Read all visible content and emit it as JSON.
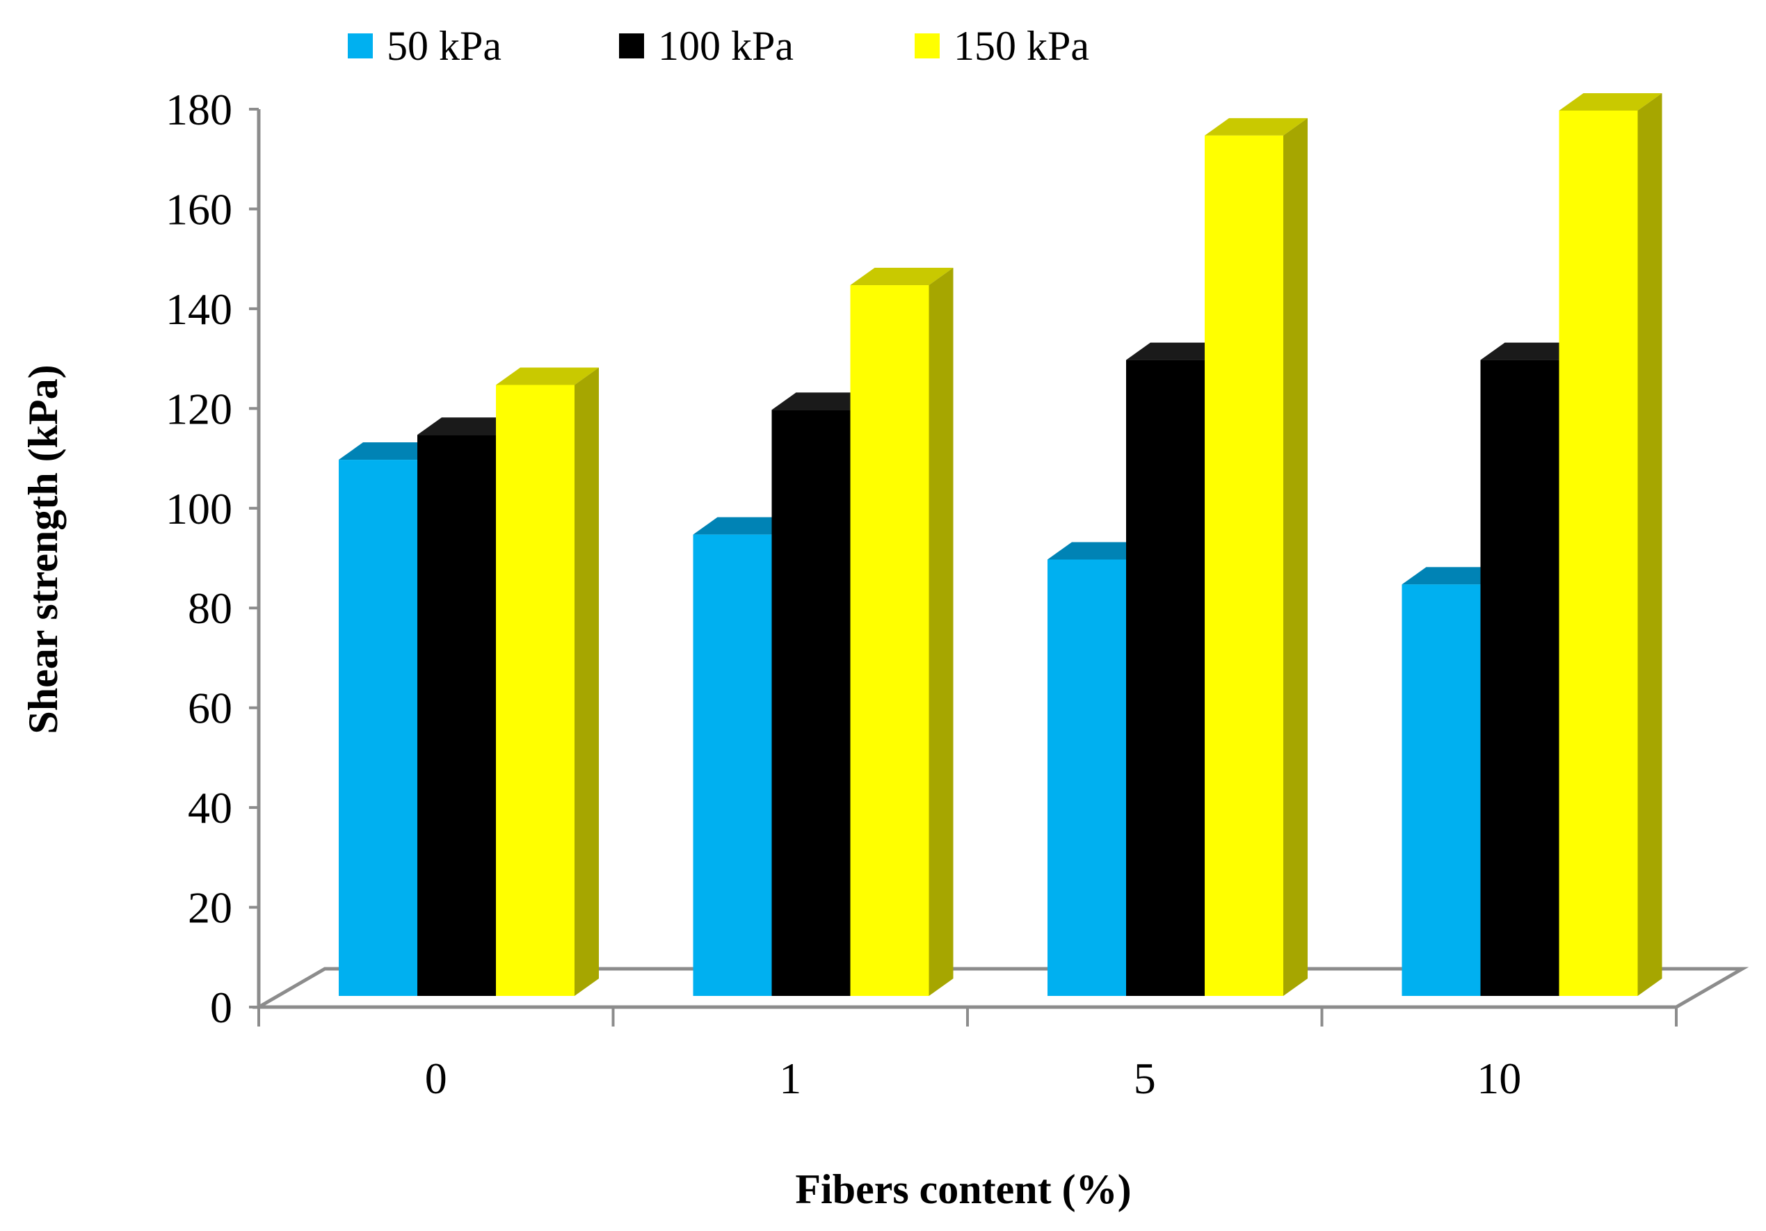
{
  "chart_data": {
    "type": "bar",
    "title": "",
    "xlabel": "Fibers content (%)",
    "ylabel": "Shear strength  (kPa)",
    "categories": [
      "0",
      "1",
      "5",
      "10"
    ],
    "ylim": [
      0,
      180
    ],
    "yticks": [
      "0",
      "20",
      "40",
      "60",
      "80",
      "100",
      "120",
      "140",
      "160",
      "180"
    ],
    "grid": false,
    "legend_position": "top",
    "series": [
      {
        "name": "50 kPa",
        "color": "#00B0F0",
        "top_color": "#0083B5",
        "values": [
          110,
          95,
          90,
          85
        ]
      },
      {
        "name": "100 kPa",
        "color": "#000000",
        "top_color": "#1a1a1a",
        "values": [
          115,
          120,
          130,
          130
        ]
      },
      {
        "name": "150 kPa",
        "color": "#FFFF00",
        "top_color": "#C9C900",
        "side_color": "#A6A600",
        "values": [
          125,
          145,
          175,
          180
        ]
      }
    ]
  }
}
